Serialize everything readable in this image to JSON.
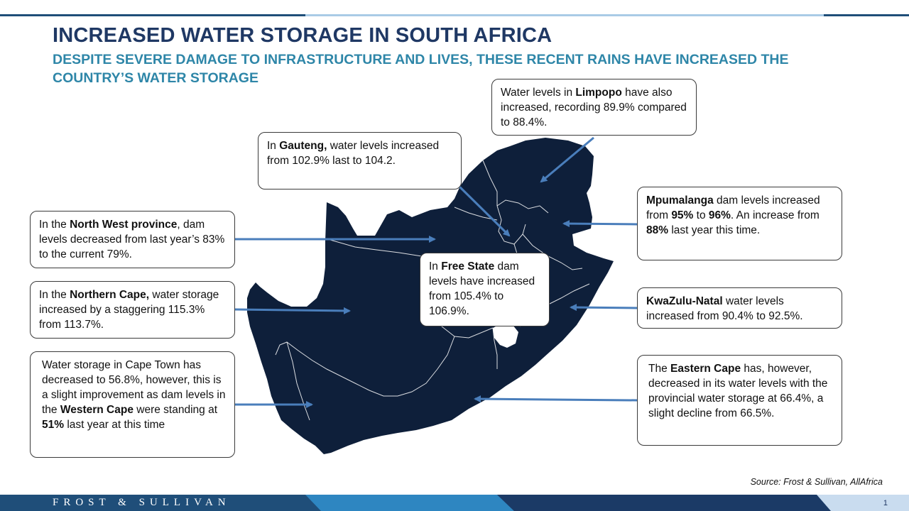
{
  "header": {
    "title": "INCREASED WATER STORAGE IN SOUTH AFRICA",
    "subtitle": "DESPITE SEVERE DAMAGE TO INFRASTRUCTURE AND LIVES, THESE RECENT RAINS HAVE INCREASED THE COUNTRY’S WATER STORAGE"
  },
  "callouts": {
    "limpopo": {
      "t1": "Water levels in ",
      "b1": "Limpopo",
      "t2": " have also increased, recording 89.9% compared to 88.4%."
    },
    "gauteng": {
      "t1": "In ",
      "b1": "Gauteng,",
      "t2": " water levels increased from 102.9%  last to 104.2."
    },
    "mpumalanga": {
      "b1": "Mpumalanga",
      "t1": " dam levels increased from ",
      "b2": "95%",
      "t2": " to ",
      "b3": "96%",
      "t3": ". An increase from ",
      "b4": "88%",
      "t4": " last year this time."
    },
    "north_west": {
      "t1": "In the ",
      "b1": "North West province",
      "t2": ", dam levels decreased from last year’s 83% to the current 79%."
    },
    "free_state": {
      "t1": "In ",
      "b1": "Free State",
      "t2": " dam levels have increased from 105.4%  to 106.9%."
    },
    "northern_cape": {
      "t1": "In the ",
      "b1": "Northern Cape,",
      "t2": " water storage increased  by a staggering 115.3%  from 113.7%."
    },
    "kzn": {
      "b1": "KwaZulu-Natal",
      "t1": "  water levels increased from 90.4%  to 92.5%."
    },
    "western_cape": {
      "t1": "Water storage in Cape Town has decreased to 56.8%, however, this is a slight improvement  as dam levels in the ",
      "b1": "Western Cape",
      "t2": " were standing at ",
      "b2": "51%",
      "t3": " last year at this time"
    },
    "eastern_cape": {
      "t1": "The ",
      "b1": "Eastern Cape",
      "t2": " has, however, decreased in its water levels with the provincial water storage at 66.4%,  a slight decline from 66.5%."
    }
  },
  "source": "Source: Frost & Sullivan, AllAfrica",
  "footer": {
    "brand": "FROST & SULLIVAN",
    "page_number": "1"
  },
  "colors": {
    "map_fill": "#0e1f3a",
    "arrow": "#4a7ebb",
    "title": "#1f3864",
    "subtitle": "#2e86a8"
  }
}
